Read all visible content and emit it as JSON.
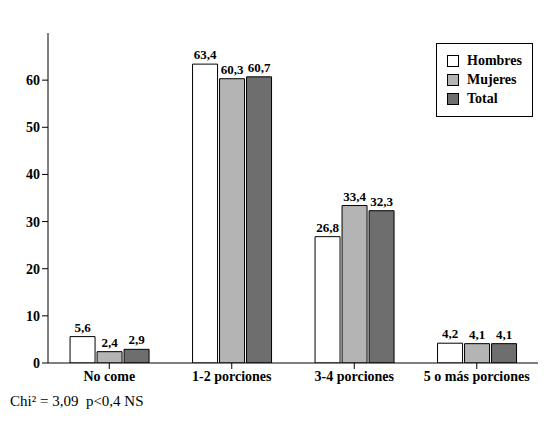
{
  "chart_data": {
    "type": "bar",
    "categories": [
      "No come",
      "1-2 porciones",
      "3-4 porciones",
      "5 o más porciones"
    ],
    "series": [
      {
        "name": "Hombres",
        "color": "#ffffff",
        "values": [
          5.6,
          63.4,
          26.8,
          4.2
        ],
        "value_labels": [
          "5,6",
          "63,4",
          "26,8",
          "4,2"
        ]
      },
      {
        "name": "Mujeres",
        "color": "#b4b4b4",
        "values": [
          2.4,
          60.3,
          33.4,
          4.1
        ],
        "value_labels": [
          "2,4",
          "60,3",
          "33,4",
          "4,1"
        ]
      },
      {
        "name": "Total",
        "color": "#6e6e6e",
        "values": [
          2.9,
          60.7,
          32.3,
          4.1
        ],
        "value_labels": [
          "2,9",
          "60,7",
          "32,3",
          "4,1"
        ]
      }
    ],
    "ylim": [
      0,
      70
    ],
    "yticks": [
      0,
      10,
      20,
      30,
      40,
      50,
      60
    ],
    "grid": false,
    "legend": "upper right",
    "data_labels": true,
    "annotations": [
      "Chi² = 3,09  p<0,4 NS"
    ]
  }
}
